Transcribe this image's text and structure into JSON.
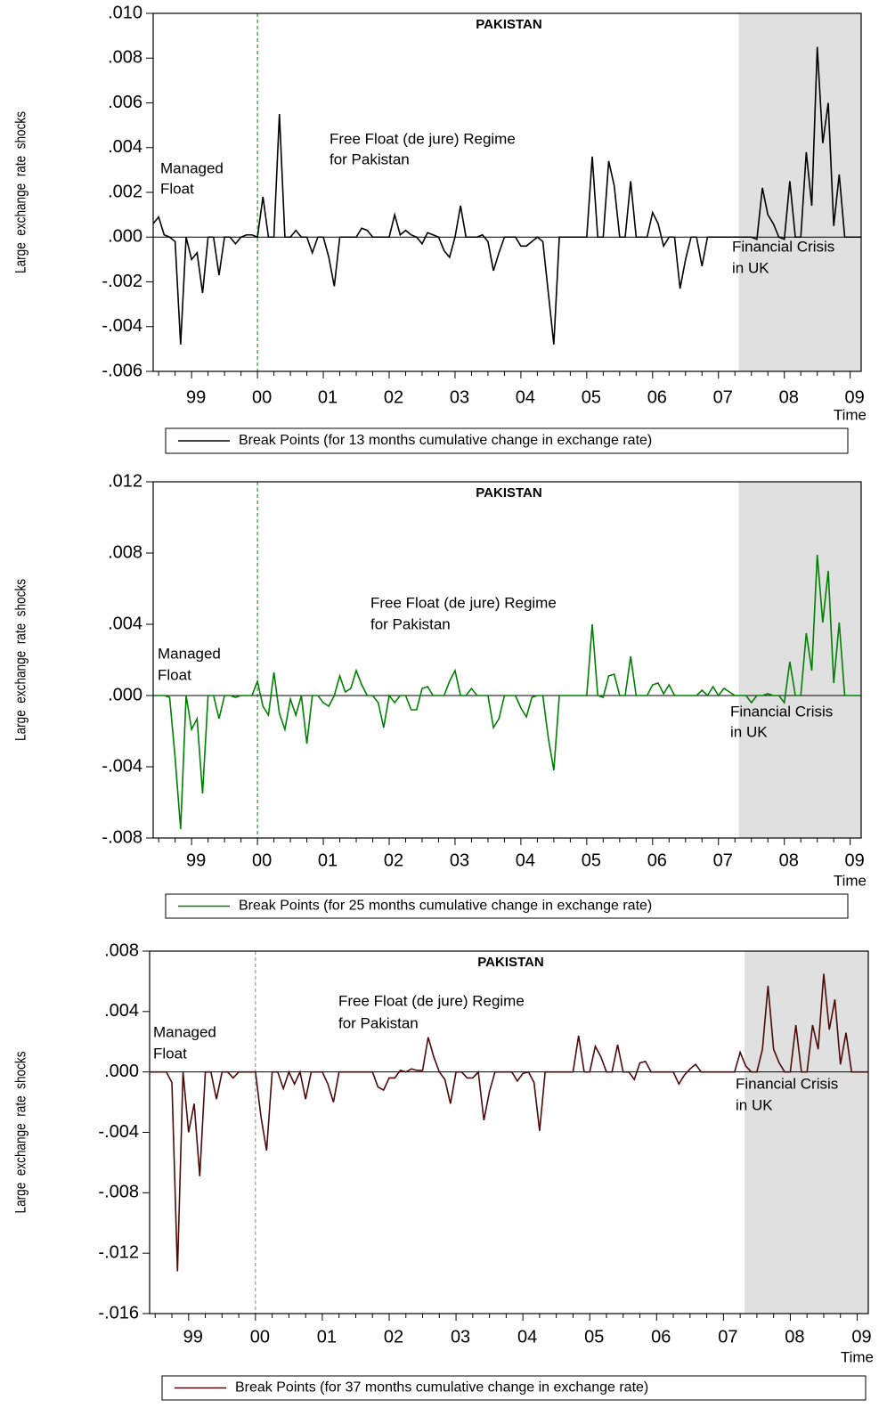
{
  "chart_data": [
    {
      "type": "line",
      "title": "PAKISTAN",
      "ylabel": "Large  exchange  rate  shocks",
      "xlabel": "Time",
      "annotations": [
        "Managed",
        "Float",
        "Free Float (de jure) Regime",
        "for Pakistan",
        "Financial Crisis",
        "in UK"
      ],
      "categories": [
        null,
        null,
        null,
        null,
        null,
        null,
        null,
        "99",
        null,
        null,
        null,
        null,
        null,
        null,
        null,
        null,
        null,
        null,
        null,
        "00",
        null,
        null,
        null,
        null,
        null,
        null,
        null,
        null,
        null,
        null,
        null,
        "01",
        null,
        null,
        null,
        null,
        null,
        null,
        null,
        null,
        null,
        null,
        null,
        "02",
        null,
        null,
        null,
        null,
        null,
        null,
        null,
        null,
        null,
        null,
        null,
        "03",
        null,
        null,
        null,
        null,
        null,
        null,
        null,
        null,
        null,
        null,
        null,
        "04",
        null,
        null,
        null,
        null,
        null,
        null,
        null,
        null,
        null,
        null,
        null,
        "05",
        null,
        null,
        null,
        null,
        null,
        null,
        null,
        null,
        null,
        null,
        null,
        "06",
        null,
        null,
        null,
        null,
        null,
        null,
        null,
        null,
        null,
        null,
        null,
        "07",
        null,
        null,
        null,
        null,
        null,
        null,
        null,
        null,
        null,
        null,
        null,
        "08",
        null,
        null,
        null,
        null,
        null,
        null,
        null,
        null,
        null,
        null,
        null,
        "09",
        null,
        null
      ],
      "series": [
        {
          "name": "Break Points (for 13 months cumulative change in exchange rate)",
          "color": "#000000",
          "values": [
            0.0006,
            0.0009,
            0.0001,
            0,
            -0.0002,
            -0.0048,
            0,
            -0.001,
            -0.0007,
            -0.0025,
            0,
            0,
            -0.0017,
            0,
            0,
            -0.0003,
            0,
            0.0001,
            0.0001,
            0,
            0.0018,
            0,
            0,
            0.0055,
            0,
            0,
            0.0003,
            0,
            0,
            -0.0007,
            0,
            0,
            -0.0009,
            -0.0022,
            0,
            0,
            0,
            0,
            0.0004,
            0.0003,
            0,
            0,
            0,
            0,
            0.001,
            0.0001,
            0.0003,
            0.0001,
            0,
            -0.0003,
            0.0002,
            0.0001,
            0,
            -0.0006,
            -0.0009,
            0,
            0.0014,
            0,
            0,
            0,
            0.0001,
            -0.0002,
            -0.0015,
            -0.0007,
            0,
            0,
            0,
            -0.0004,
            -0.0004,
            -0.0002,
            0,
            -0.0002,
            -0.0025,
            -0.0048,
            0,
            0,
            0,
            0,
            0,
            0,
            0.0036,
            0,
            0,
            0.0034,
            0.0023,
            0,
            0,
            0.0025,
            0,
            0,
            0,
            0.0011,
            0.0006,
            -0.0004,
            0,
            0,
            -0.0023,
            -0.001,
            0,
            0,
            -0.0013,
            0,
            0,
            0,
            0,
            0,
            0,
            0,
            0,
            0,
            -0.0001,
            0.0022,
            0.001,
            0.0006,
            0,
            -0.0001,
            0.0025,
            0,
            0,
            0.0038,
            0.0014,
            0.0085,
            0.0042,
            0.006,
            0.0005,
            0.0028,
            0,
            0,
            0,
            0
          ]
        }
      ],
      "ylim": [
        -0.006,
        0.01
      ],
      "yticks": [
        {
          "value": -0.006,
          "label": "-.006"
        },
        {
          "value": -0.004,
          "label": "-.004"
        },
        {
          "value": -0.002,
          "label": "-.002"
        },
        {
          "value": 0,
          "label": ".000"
        },
        {
          "value": 0.002,
          "label": ".002"
        },
        {
          "value": 0.004,
          "label": ".004"
        },
        {
          "value": 0.006,
          "label": ".006"
        },
        {
          "value": 0.008,
          "label": ".008"
        },
        {
          "value": 0.01,
          "label": ".010"
        }
      ]
    },
    {
      "type": "line",
      "title": "PAKISTAN",
      "ylabel": "Large  exchange  rate  shocks",
      "xlabel": "Time",
      "annotations": [
        "Managed",
        "Float",
        "Free Float (de jure) Regime",
        "for Pakistan",
        "Financial Crisis",
        "in UK"
      ],
      "categories": [
        null,
        null,
        null,
        null,
        null,
        null,
        null,
        "99",
        null,
        null,
        null,
        null,
        null,
        null,
        null,
        null,
        null,
        null,
        null,
        "00",
        null,
        null,
        null,
        null,
        null,
        null,
        null,
        null,
        null,
        null,
        null,
        "01",
        null,
        null,
        null,
        null,
        null,
        null,
        null,
        null,
        null,
        null,
        null,
        "02",
        null,
        null,
        null,
        null,
        null,
        null,
        null,
        null,
        null,
        null,
        null,
        "03",
        null,
        null,
        null,
        null,
        null,
        null,
        null,
        null,
        null,
        null,
        null,
        "04",
        null,
        null,
        null,
        null,
        null,
        null,
        null,
        null,
        null,
        null,
        null,
        "05",
        null,
        null,
        null,
        null,
        null,
        null,
        null,
        null,
        null,
        null,
        null,
        "06",
        null,
        null,
        null,
        null,
        null,
        null,
        null,
        null,
        null,
        null,
        null,
        "07",
        null,
        null,
        null,
        null,
        null,
        null,
        null,
        null,
        null,
        null,
        null,
        "08",
        null,
        null,
        null,
        null,
        null,
        null,
        null,
        null,
        null,
        null,
        null,
        "09",
        null,
        null
      ],
      "series": [
        {
          "name": "Break Points (for 25 months cumulative change in exchange rate)",
          "color": "#008000",
          "values": [
            0,
            0,
            0,
            -0.0001,
            -0.0035,
            -0.0075,
            0,
            -0.0019,
            -0.0013,
            -0.0055,
            0,
            0,
            -0.0013,
            0,
            0,
            -0.0001,
            0,
            0,
            0,
            0.0008,
            -0.0006,
            -0.0011,
            0.0013,
            -0.001,
            -0.0019,
            -0.0002,
            -0.0011,
            0,
            -0.0027,
            0,
            0,
            -0.0004,
            -0.0006,
            0,
            0.0011,
            0.0002,
            0.0004,
            0.0014,
            0.0006,
            0,
            0,
            -0.0004,
            -0.0018,
            0,
            -0.0004,
            0,
            0,
            -0.0008,
            -0.0008,
            0.0004,
            0.0005,
            0,
            0,
            0,
            0.0008,
            0.0014,
            0,
            0,
            0.0004,
            0,
            0,
            0,
            -0.0018,
            -0.0013,
            0,
            0,
            0,
            -0.0007,
            -0.0012,
            -0.0001,
            0,
            0,
            -0.0024,
            -0.0042,
            0,
            0,
            0,
            0,
            0,
            0,
            0.004,
            0,
            -0.0001,
            0.0011,
            0.0012,
            0,
            0,
            0.0022,
            0,
            0,
            0,
            0.0006,
            0.0007,
            0.0001,
            0.0006,
            0,
            0,
            0,
            0,
            0,
            0.0003,
            0,
            0.0005,
            0,
            0.0004,
            0.0002,
            0,
            0,
            0,
            -0.0004,
            0,
            0,
            0.0001,
            0,
            0,
            -0.0004,
            0.0019,
            0,
            0,
            0.0035,
            0.0014,
            0.0079,
            0.0041,
            0.007,
            0.0007,
            0.0041,
            0,
            0,
            0,
            0
          ]
        }
      ],
      "ylim": [
        -0.008,
        0.012
      ],
      "yticks": [
        {
          "value": -0.008,
          "label": "-.008"
        },
        {
          "value": -0.004,
          "label": "-.004"
        },
        {
          "value": 0,
          "label": ".000"
        },
        {
          "value": 0.004,
          "label": ".004"
        },
        {
          "value": 0.008,
          "label": ".008"
        },
        {
          "value": 0.012,
          "label": ".012"
        }
      ]
    },
    {
      "type": "line",
      "title": "PAKISTAN",
      "ylabel": "Large  exchange  rate  shocks",
      "xlabel": "Time",
      "annotations": [
        "Managed",
        "Float",
        "Free Float (de jure) Regime",
        "for Pakistan",
        "Financial Crisis",
        "in UK"
      ],
      "categories": [
        null,
        null,
        null,
        null,
        null,
        null,
        null,
        "99",
        null,
        null,
        null,
        null,
        null,
        null,
        null,
        null,
        null,
        null,
        null,
        "00",
        null,
        null,
        null,
        null,
        null,
        null,
        null,
        null,
        null,
        null,
        null,
        "01",
        null,
        null,
        null,
        null,
        null,
        null,
        null,
        null,
        null,
        null,
        null,
        "02",
        null,
        null,
        null,
        null,
        null,
        null,
        null,
        null,
        null,
        null,
        null,
        "03",
        null,
        null,
        null,
        null,
        null,
        null,
        null,
        null,
        null,
        null,
        null,
        "04",
        null,
        null,
        null,
        null,
        null,
        null,
        null,
        null,
        null,
        null,
        null,
        "05",
        null,
        null,
        null,
        null,
        null,
        null,
        null,
        null,
        null,
        null,
        null,
        "06",
        null,
        null,
        null,
        null,
        null,
        null,
        null,
        null,
        null,
        null,
        null,
        "07",
        null,
        null,
        null,
        null,
        null,
        null,
        null,
        null,
        null,
        null,
        null,
        "08",
        null,
        null,
        null,
        null,
        null,
        null,
        null,
        null,
        null,
        null,
        null,
        "09",
        null,
        null
      ],
      "series": [
        {
          "name": "Break Points (for 37 months cumulative change in exchange rate)",
          "color": "#4d0a0a",
          "values": [
            0,
            0,
            0,
            0,
            -0.0007,
            -0.0132,
            0,
            -0.004,
            -0.0021,
            -0.0069,
            0,
            0,
            -0.0018,
            0,
            0,
            -0.0004,
            0,
            0,
            0,
            0,
            -0.003,
            -0.0052,
            0,
            0,
            -0.0011,
            0,
            -0.0008,
            0,
            -0.0018,
            0,
            0,
            0,
            -0.0008,
            -0.002,
            0,
            0,
            0,
            0,
            0,
            0,
            0,
            -0.001,
            -0.0012,
            -0.0004,
            -0.0004,
            0.0001,
            0,
            0.0002,
            0.0001,
            0.0001,
            0.0023,
            0.001,
            0,
            -0.0005,
            -0.0021,
            0,
            0,
            -0.0004,
            -0.0004,
            0,
            -0.0032,
            -0.0013,
            0,
            0,
            0,
            0,
            -0.0006,
            -0.0001,
            0,
            -0.0007,
            -0.0039,
            0,
            0,
            0,
            0,
            0,
            0,
            0.0024,
            0,
            0,
            0.0017,
            0.001,
            0,
            0,
            0.0018,
            0,
            0,
            -0.0005,
            0.0006,
            0.0007,
            0,
            0,
            0,
            0,
            0,
            -0.0008,
            -0.0002,
            0.0002,
            0.0005,
            0,
            0,
            0,
            0,
            0,
            0,
            0,
            0.0013,
            0.0004,
            0,
            0,
            0.0015,
            0.0057,
            0.0015,
            0.0006,
            0,
            0,
            0.0031,
            0,
            0,
            0.0031,
            0.0015,
            0.0065,
            0.0028,
            0.0048,
            0.0005,
            0.0026,
            0,
            0,
            0,
            0
          ]
        }
      ],
      "ylim": [
        -0.016,
        0.008
      ],
      "yticks": [
        {
          "value": -0.016,
          "label": "-.016"
        },
        {
          "value": -0.012,
          "label": "-.012"
        },
        {
          "value": -0.008,
          "label": "-.008"
        },
        {
          "value": -0.004,
          "label": "-.004"
        },
        {
          "value": 0,
          "label": ".000"
        },
        {
          "value": 0.004,
          "label": ".004"
        },
        {
          "value": 0.008,
          "label": ".008"
        }
      ]
    }
  ]
}
